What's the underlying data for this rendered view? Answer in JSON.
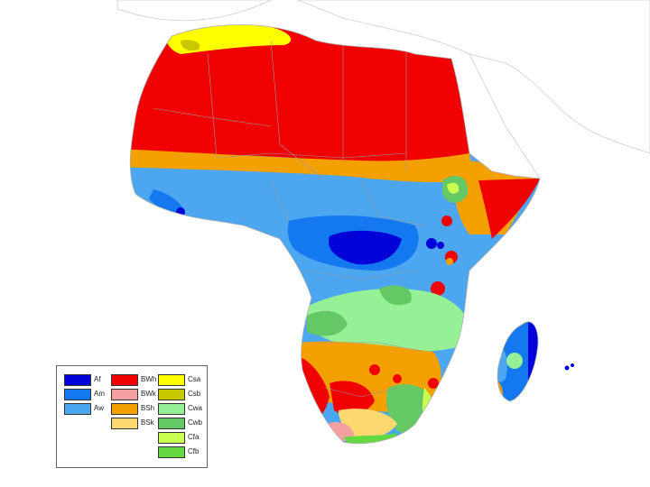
{
  "map": {
    "colors": {
      "ocean": "#ffffff",
      "land_outline": "#b0b0b0",
      "border": "#9a9a9a",
      "Af": "#0000d8",
      "Am": "#1478f0",
      "Aw": "#4ca6f0",
      "BWh": "#f00000",
      "BWk": "#f4a0a0",
      "BSh": "#f4a000",
      "BSk": "#ffd870",
      "Csa": "#ffff00",
      "Csb": "#c8c800",
      "Cwa": "#96f096",
      "Cwb": "#64c864",
      "Cfa": "#c8ff50",
      "Cfb": "#64d840"
    }
  },
  "legend": {
    "columns": [
      [
        {
          "code": "Af",
          "label": "Af",
          "color": "#0000d8"
        },
        {
          "code": "Am",
          "label": "Am",
          "color": "#1478f0"
        },
        {
          "code": "Aw",
          "label": "Aw",
          "color": "#4ca6f0"
        }
      ],
      [
        {
          "code": "BWh",
          "label": "BWh",
          "color": "#f00000"
        },
        {
          "code": "BWk",
          "label": "BWk",
          "color": "#f4a0a0"
        },
        {
          "code": "BSh",
          "label": "BSh",
          "color": "#f4a000"
        },
        {
          "code": "BSk",
          "label": "BSk",
          "color": "#ffd870"
        }
      ],
      [
        {
          "code": "Csa",
          "label": "Csa",
          "color": "#ffff00"
        },
        {
          "code": "Csb",
          "label": "Csb",
          "color": "#c8c800"
        },
        {
          "code": "Cwa",
          "label": "Cwa",
          "color": "#96f096"
        },
        {
          "code": "Cwb",
          "label": "Cwb",
          "color": "#64c864"
        },
        {
          "code": "Cfa",
          "label": "Cfa",
          "color": "#c8ff50"
        },
        {
          "code": "Cfb",
          "label": "Cfb",
          "color": "#64d840"
        }
      ]
    ]
  }
}
